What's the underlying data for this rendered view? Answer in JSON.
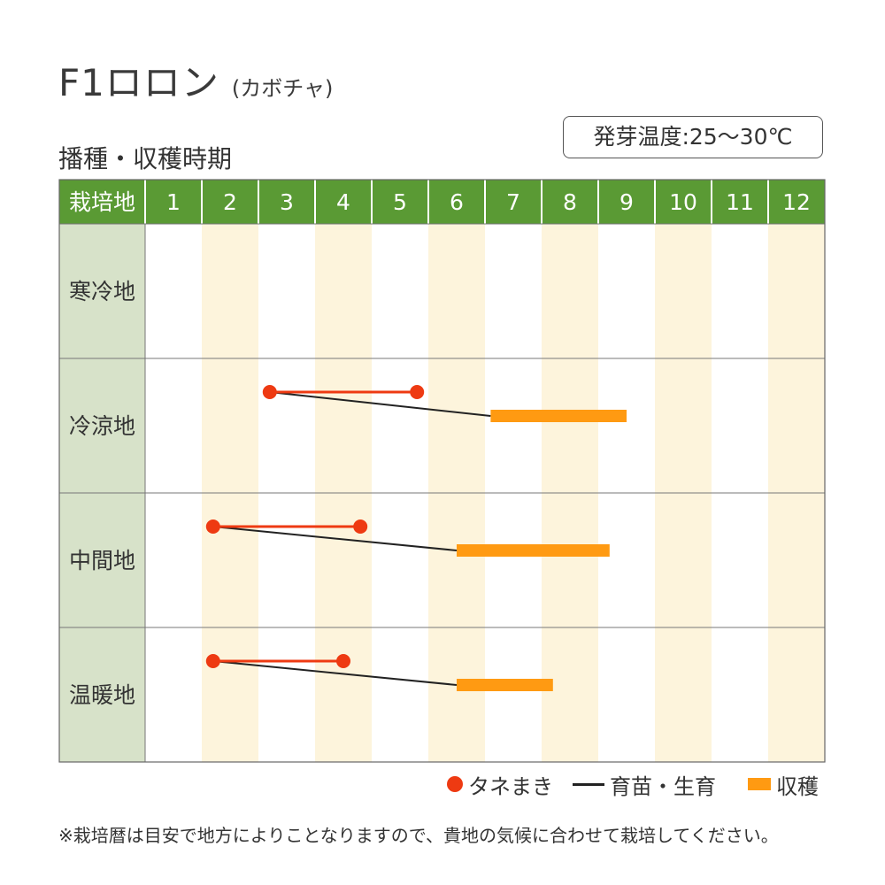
{
  "header": {
    "title": "F1ロロン",
    "title_sub": "(カボチャ)",
    "section": "播種・収穫時期",
    "germination": "発芽温度:25～30℃"
  },
  "footer": {
    "note": "※栽培暦は目安で地方によりことなりますので、貴地の気候に合わせて栽培してください。"
  },
  "colors": {
    "header_green": "#5a9a34",
    "label_column": "#d7e2c9",
    "stripe": "#fdf4dc",
    "sowing": "#ee3a12",
    "growing": "#222222",
    "harvest": "#ff9a12"
  },
  "chart_data": {
    "type": "table",
    "header_label": "栽培地",
    "months": [
      "1",
      "2",
      "3",
      "4",
      "5",
      "6",
      "7",
      "8",
      "9",
      "10",
      "11",
      "12"
    ],
    "legend": [
      {
        "key": "sowing",
        "label": "タネまき",
        "marker": "dot"
      },
      {
        "key": "growing",
        "label": "育苗・生育",
        "marker": "line"
      },
      {
        "key": "harvest",
        "label": "収穫",
        "marker": "bar"
      }
    ],
    "regions": [
      {
        "name": "寒冷地",
        "sowing": null,
        "harvest": null
      },
      {
        "name": "冷涼地",
        "sowing": [
          3.2,
          5.8
        ],
        "harvest": [
          7.1,
          9.5
        ]
      },
      {
        "name": "中間地",
        "sowing": [
          2.2,
          4.8
        ],
        "harvest": [
          6.5,
          9.2
        ]
      },
      {
        "name": "温暖地",
        "sowing": [
          2.2,
          4.5
        ],
        "harvest": [
          6.5,
          8.2
        ]
      }
    ]
  }
}
